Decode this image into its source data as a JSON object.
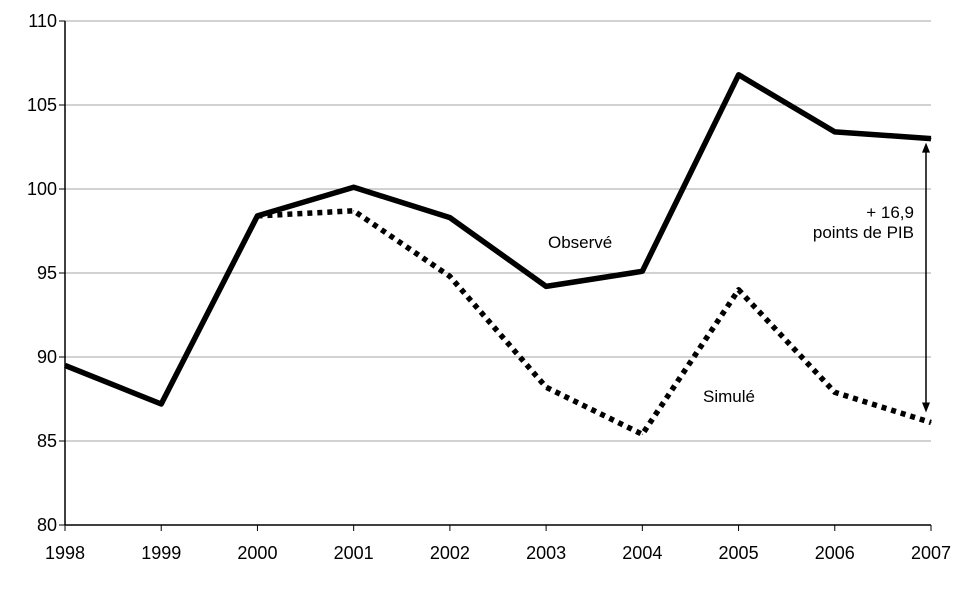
{
  "chart_data": {
    "type": "line",
    "title": "",
    "xlabel": "",
    "ylabel": "",
    "x": [
      "1998",
      "1999",
      "2000",
      "2001",
      "2002",
      "2003",
      "2004",
      "2005",
      "2006",
      "2007"
    ],
    "ylim": [
      80,
      110
    ],
    "yticks": [
      "80",
      "85",
      "90",
      "95",
      "100",
      "105",
      "110"
    ],
    "grid": true,
    "series": [
      {
        "name": "Observé",
        "style": "solid",
        "color": "#000000",
        "values": [
          89.5,
          87.2,
          98.4,
          100.1,
          98.3,
          94.2,
          95.1,
          106.8,
          103.4,
          103.0
        ]
      },
      {
        "name": "Simulé",
        "style": "dotted",
        "color": "#000000",
        "values": [
          null,
          null,
          98.4,
          98.7,
          94.8,
          88.2,
          85.4,
          94.0,
          87.9,
          86.1
        ]
      }
    ],
    "annotation": {
      "line1": "+ 16,9",
      "line2": "points  de PIB"
    }
  }
}
